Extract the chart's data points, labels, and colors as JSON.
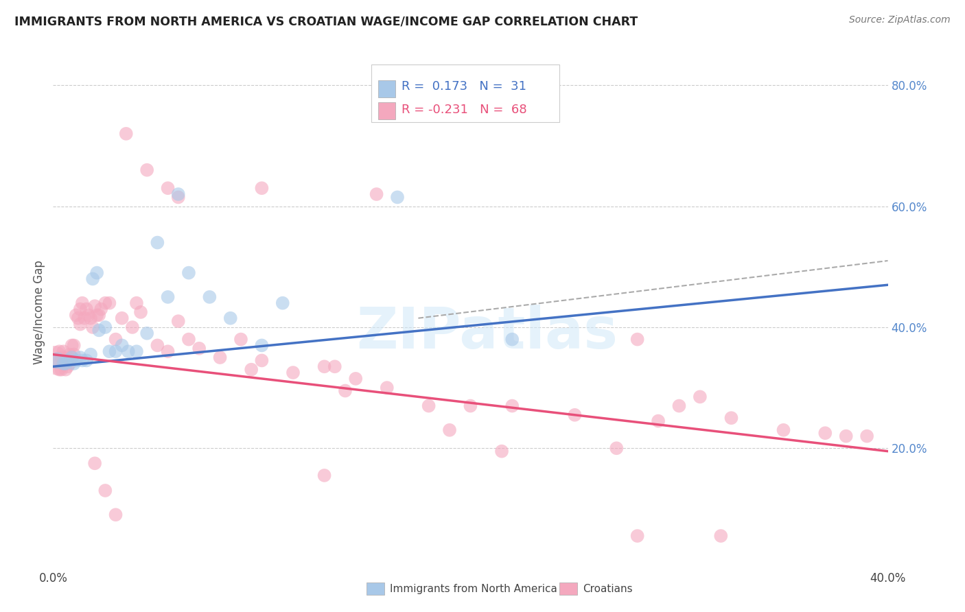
{
  "title": "IMMIGRANTS FROM NORTH AMERICA VS CROATIAN WAGE/INCOME GAP CORRELATION CHART",
  "source": "Source: ZipAtlas.com",
  "ylabel": "Wage/Income Gap",
  "legend_labels": [
    "Immigrants from North America",
    "Croatians"
  ],
  "blue_color": "#a8c8e8",
  "pink_color": "#f4a8be",
  "blue_line_color": "#4472c4",
  "pink_line_color": "#e8507a",
  "dashed_line_color": "#aaaaaa",
  "watermark": "ZIPatlas",
  "xlim": [
    0.0,
    0.4
  ],
  "ylim": [
    0.0,
    0.85
  ],
  "xtick_positions": [
    0.0,
    0.4
  ],
  "xtick_labels": [
    "0.0%",
    "40.0%"
  ],
  "yticks_right": [
    0.2,
    0.4,
    0.6,
    0.8
  ],
  "blue_x": [
    0.002,
    0.005,
    0.006,
    0.007,
    0.009,
    0.01,
    0.011,
    0.013,
    0.014,
    0.016,
    0.018,
    0.019,
    0.021,
    0.022,
    0.025,
    0.027,
    0.03,
    0.033,
    0.036,
    0.04,
    0.045,
    0.05,
    0.055,
    0.06,
    0.065,
    0.075,
    0.085,
    0.1,
    0.11,
    0.165,
    0.22
  ],
  "blue_y": [
    0.345,
    0.34,
    0.34,
    0.345,
    0.35,
    0.34,
    0.345,
    0.35,
    0.345,
    0.345,
    0.355,
    0.48,
    0.49,
    0.395,
    0.4,
    0.36,
    0.36,
    0.37,
    0.36,
    0.36,
    0.39,
    0.54,
    0.45,
    0.62,
    0.49,
    0.45,
    0.415,
    0.37,
    0.44,
    0.615,
    0.38
  ],
  "blue_sizes": [
    300,
    200,
    200,
    200,
    200,
    200,
    200,
    200,
    200,
    200,
    200,
    200,
    200,
    200,
    200,
    200,
    200,
    200,
    200,
    200,
    200,
    200,
    200,
    200,
    200,
    200,
    200,
    200,
    200,
    200,
    200
  ],
  "pink_x": [
    0.001,
    0.002,
    0.003,
    0.003,
    0.004,
    0.004,
    0.005,
    0.005,
    0.006,
    0.006,
    0.007,
    0.007,
    0.008,
    0.008,
    0.009,
    0.009,
    0.01,
    0.01,
    0.011,
    0.012,
    0.013,
    0.013,
    0.014,
    0.015,
    0.016,
    0.017,
    0.018,
    0.019,
    0.02,
    0.021,
    0.022,
    0.023,
    0.025,
    0.027,
    0.03,
    0.033,
    0.038,
    0.04,
    0.042,
    0.05,
    0.055,
    0.06,
    0.065,
    0.07,
    0.08,
    0.09,
    0.095,
    0.1,
    0.115,
    0.13,
    0.135,
    0.14,
    0.145,
    0.16,
    0.18,
    0.19,
    0.2,
    0.22,
    0.25,
    0.28,
    0.29,
    0.3,
    0.31,
    0.325,
    0.35,
    0.37,
    0.38,
    0.39
  ],
  "pink_y": [
    0.35,
    0.34,
    0.33,
    0.36,
    0.35,
    0.33,
    0.34,
    0.36,
    0.345,
    0.33,
    0.35,
    0.335,
    0.355,
    0.34,
    0.37,
    0.35,
    0.37,
    0.355,
    0.42,
    0.415,
    0.43,
    0.405,
    0.44,
    0.415,
    0.43,
    0.42,
    0.415,
    0.4,
    0.435,
    0.42,
    0.42,
    0.43,
    0.44,
    0.44,
    0.38,
    0.415,
    0.4,
    0.44,
    0.425,
    0.37,
    0.36,
    0.41,
    0.38,
    0.365,
    0.35,
    0.38,
    0.33,
    0.345,
    0.325,
    0.335,
    0.335,
    0.295,
    0.315,
    0.3,
    0.27,
    0.23,
    0.27,
    0.27,
    0.255,
    0.38,
    0.245,
    0.27,
    0.285,
    0.25,
    0.23,
    0.225,
    0.22,
    0.22
  ],
  "pink_sizes": [
    600,
    600,
    200,
    200,
    200,
    200,
    200,
    200,
    200,
    200,
    200,
    200,
    200,
    200,
    200,
    200,
    200,
    200,
    200,
    200,
    200,
    200,
    200,
    200,
    200,
    200,
    200,
    200,
    200,
    200,
    200,
    200,
    200,
    200,
    200,
    200,
    200,
    200,
    200,
    200,
    200,
    200,
    200,
    200,
    200,
    200,
    200,
    200,
    200,
    200,
    200,
    200,
    200,
    200,
    200,
    200,
    200,
    200,
    200,
    200,
    200,
    200,
    200,
    200,
    200,
    200,
    200,
    200
  ],
  "extra_pink": [
    [
      0.035,
      0.72
    ],
    [
      0.045,
      0.66
    ],
    [
      0.055,
      0.63
    ],
    [
      0.06,
      0.615
    ],
    [
      0.1,
      0.63
    ],
    [
      0.155,
      0.62
    ],
    [
      0.02,
      0.175
    ],
    [
      0.025,
      0.13
    ],
    [
      0.03,
      0.09
    ],
    [
      0.13,
      0.155
    ],
    [
      0.215,
      0.195
    ],
    [
      0.27,
      0.2
    ],
    [
      0.28,
      0.055
    ],
    [
      0.32,
      0.055
    ]
  ],
  "blue_trendline": [
    0.0,
    0.4,
    0.335,
    0.47
  ],
  "pink_trendline": [
    0.0,
    0.4,
    0.355,
    0.195
  ],
  "dashed_line": [
    0.175,
    0.4,
    0.415,
    0.51
  ]
}
